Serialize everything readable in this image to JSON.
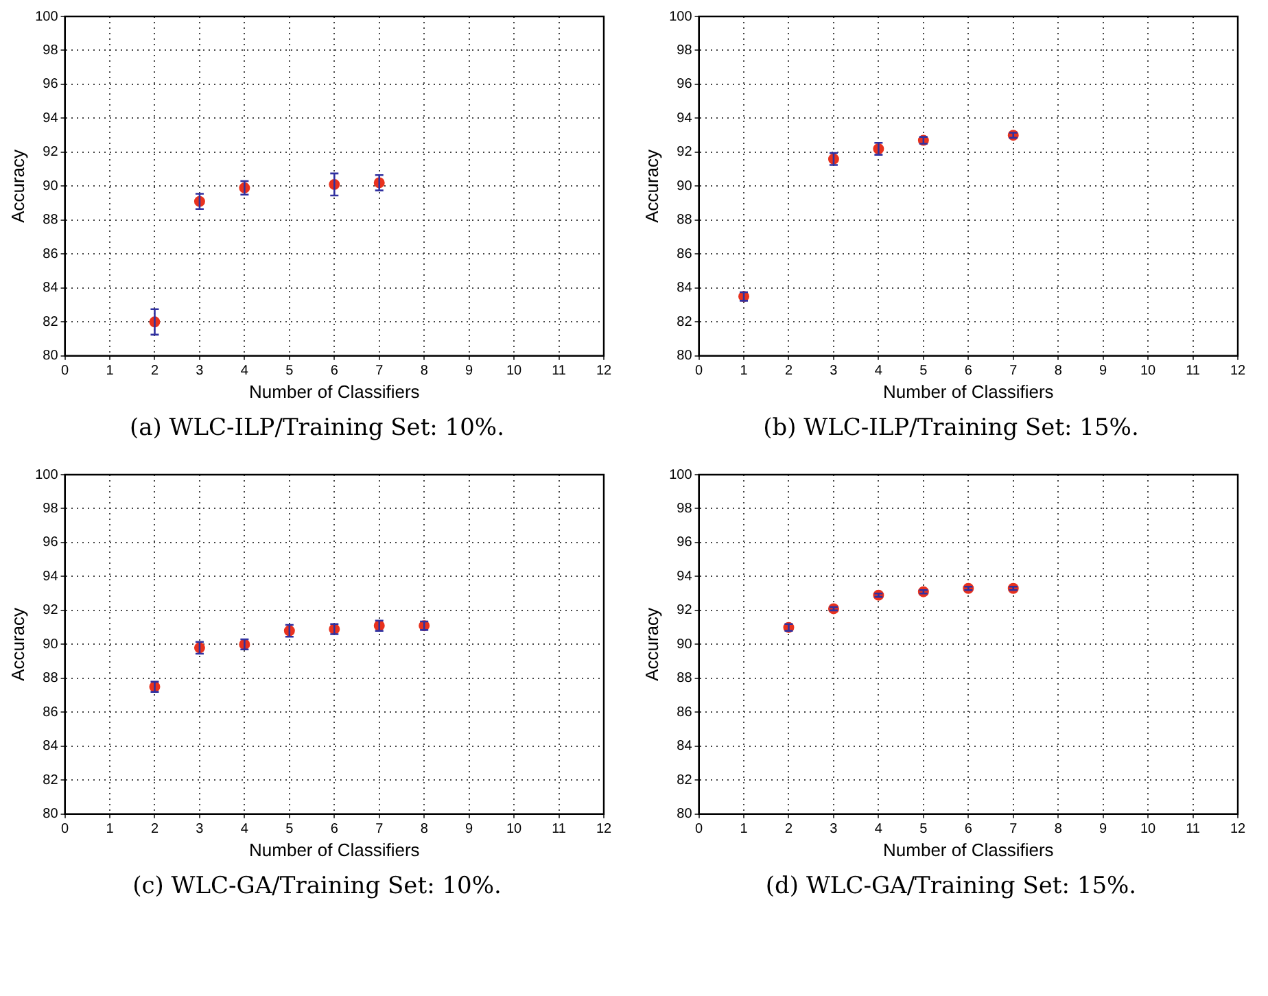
{
  "chart_data": [
    {
      "type": "scatter",
      "title": "(a) WLC-ILP/Training Set: 10%.",
      "xlabel": "Number of Classifiers",
      "ylabel": "Accuracy",
      "x": [
        2,
        3,
        4,
        6,
        7
      ],
      "values": [
        82.0,
        89.1,
        89.9,
        90.1,
        90.2
      ],
      "errors": [
        0.75,
        0.45,
        0.4,
        0.65,
        0.45
      ],
      "color": "#e8321e",
      "marker": "circle",
      "xlim": [
        0,
        12
      ],
      "ylim": [
        80,
        100
      ],
      "xticks": [
        0,
        1,
        2,
        3,
        4,
        5,
        6,
        7,
        8,
        9,
        10,
        11,
        12
      ],
      "yticks": [
        80,
        82,
        84,
        86,
        88,
        90,
        92,
        94,
        96,
        98,
        100
      ],
      "grid": true
    },
    {
      "type": "scatter",
      "title": "(b) WLC-ILP/Training Set: 15%.",
      "xlabel": "Number of Classifiers",
      "ylabel": "Accuracy",
      "x": [
        1,
        3,
        4,
        5,
        7
      ],
      "values": [
        83.5,
        91.6,
        92.2,
        92.7,
        93.0
      ],
      "errors": [
        0.25,
        0.35,
        0.35,
        0.2,
        0.15
      ],
      "color": "#e8321e",
      "marker": "circle",
      "xlim": [
        0,
        12
      ],
      "ylim": [
        80,
        100
      ],
      "xticks": [
        0,
        1,
        2,
        3,
        4,
        5,
        6,
        7,
        8,
        9,
        10,
        11,
        12
      ],
      "yticks": [
        80,
        82,
        84,
        86,
        88,
        90,
        92,
        94,
        96,
        98,
        100
      ],
      "grid": true
    },
    {
      "type": "scatter",
      "title": "(c) WLC-GA/Training Set: 10%.",
      "xlabel": "Number of Classifiers",
      "ylabel": "Accuracy",
      "x": [
        2,
        3,
        4,
        5,
        6,
        7,
        8
      ],
      "values": [
        87.5,
        89.8,
        90.0,
        90.8,
        90.9,
        91.1,
        91.1
      ],
      "errors": [
        0.3,
        0.35,
        0.3,
        0.35,
        0.3,
        0.3,
        0.25
      ],
      "color": "#e8321e",
      "marker": "circle",
      "xlim": [
        0,
        12
      ],
      "ylim": [
        80,
        100
      ],
      "xticks": [
        0,
        1,
        2,
        3,
        4,
        5,
        6,
        7,
        8,
        9,
        10,
        11,
        12
      ],
      "yticks": [
        80,
        82,
        84,
        86,
        88,
        90,
        92,
        94,
        96,
        98,
        100
      ],
      "grid": true
    },
    {
      "type": "scatter",
      "title": "(d) WLC-GA/Training Set: 15%.",
      "xlabel": "Number of Classifiers",
      "ylabel": "Accuracy",
      "x": [
        2,
        3,
        4,
        5,
        6,
        7
      ],
      "values": [
        91.0,
        92.1,
        92.9,
        93.1,
        93.3,
        93.3
      ],
      "errors": [
        0.2,
        0.1,
        0.1,
        0.1,
        0.1,
        0.1
      ],
      "color": "#e8321e",
      "marker": "circle",
      "xlim": [
        0,
        12
      ],
      "ylim": [
        80,
        100
      ],
      "xticks": [
        0,
        1,
        2,
        3,
        4,
        5,
        6,
        7,
        8,
        9,
        10,
        11,
        12
      ],
      "yticks": [
        80,
        82,
        84,
        86,
        88,
        90,
        92,
        94,
        96,
        98,
        100
      ],
      "grid": true
    }
  ]
}
